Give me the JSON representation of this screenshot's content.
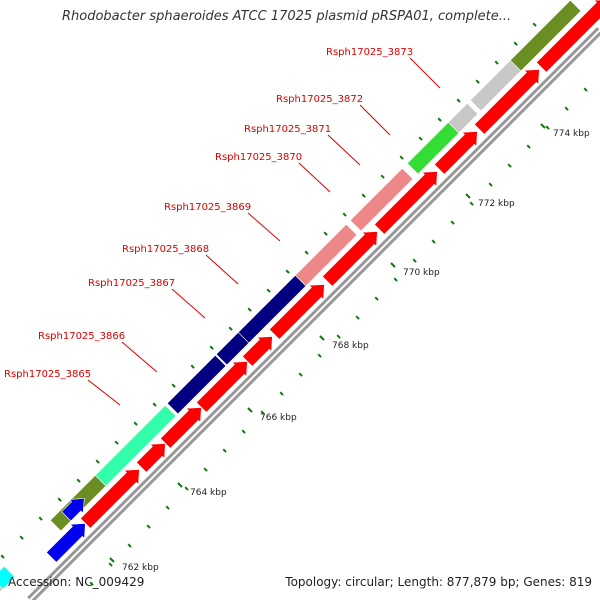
{
  "title": "Rhodobacter sphaeroides ATCC 17025 plasmid pRSPA01, complete...",
  "footer": {
    "accession": "Accession: NC_009429",
    "summary": "Topology: circular; Length: 877,879 bp; Genes: 819"
  },
  "colors": {
    "forward_cds": "#ff0000",
    "backbone": "#999999",
    "tick": "#117711",
    "label": "#dd0000",
    "light_green": "#33dd33",
    "pink": "#ee8888",
    "navy": "#000080",
    "teal": "#33ffaa",
    "olive": "#6b8e23",
    "grey": "#c8c8c8",
    "blue": "#0000ee",
    "cyan": "#00ffff"
  },
  "genes": [
    {
      "name": "Rsph17025_3865",
      "color": "olive"
    },
    {
      "name": "Rsph17025_3866",
      "color": "teal"
    },
    {
      "name": "Rsph17025_3867",
      "color": "navy"
    },
    {
      "name": "Rsph17025_3868",
      "color": "navy"
    },
    {
      "name": "Rsph17025_3869",
      "color": "navy"
    },
    {
      "name": "Rsph17025_3870",
      "color": "pink"
    },
    {
      "name": "Rsph17025_3871",
      "color": "pink"
    },
    {
      "name": "Rsph17025_3872",
      "color": "pink"
    },
    {
      "name": "Rsph17025_3873",
      "color": "light_green"
    }
  ],
  "kbp_labels": [
    "762 kbp",
    "764 kbp",
    "766 kbp",
    "768 kbp",
    "770 kbp",
    "772 kbp",
    "774 kbp"
  ]
}
